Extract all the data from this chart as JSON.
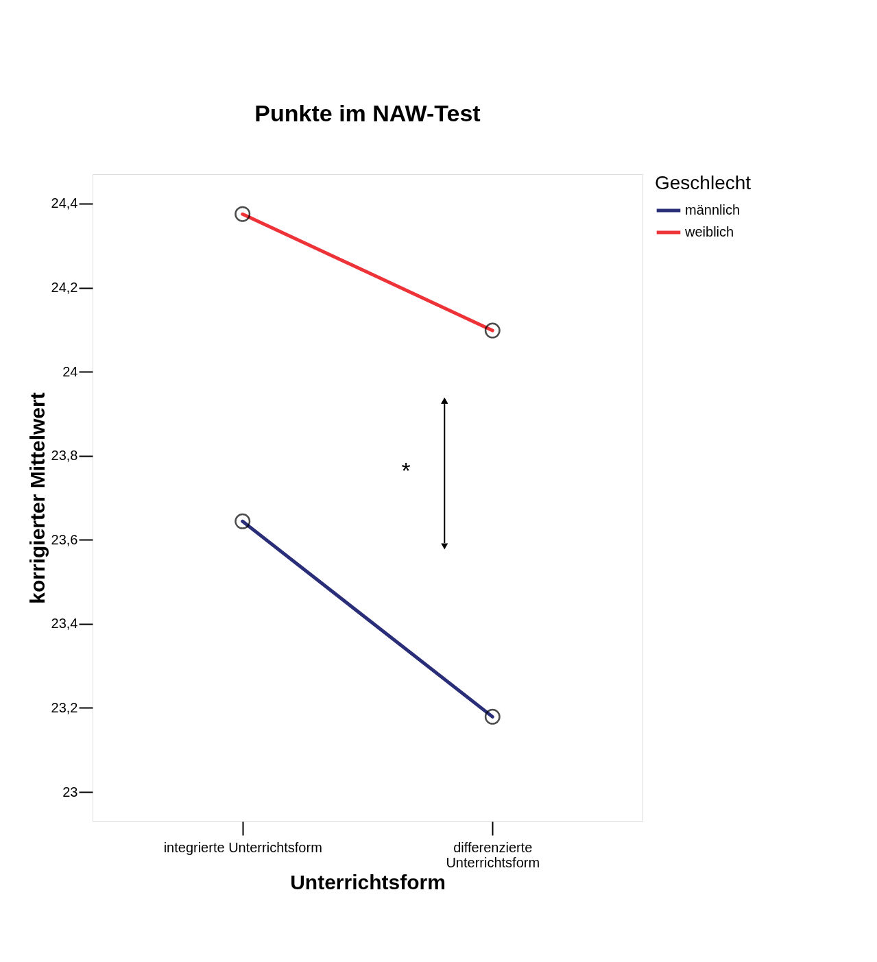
{
  "chart_data": {
    "type": "line",
    "title": "Punkte im NAW-Test",
    "xlabel": "Unterrichtsform",
    "ylabel": "korrigierter Mittelwert",
    "legend_title": "Geschlecht",
    "categories": [
      "integrierte Unterrichtsform",
      "differenzierte\nUnterrichtsform"
    ],
    "series": [
      {
        "name": "männlich",
        "color": "#2a2e78",
        "values": [
          23.644,
          23.179
        ]
      },
      {
        "name": "weiblich",
        "color": "#ee3338",
        "values": [
          24.375,
          24.098
        ]
      }
    ],
    "ylim": [
      22.93,
      24.47
    ],
    "yticks": [
      23,
      {
        "value": 23.2,
        "label": "23,2"
      },
      {
        "value": 23.4,
        "label": "23,4"
      },
      {
        "value": 23.6,
        "label": "23,6"
      },
      {
        "value": 23.8,
        "label": "23,8"
      },
      24,
      {
        "value": 24.2,
        "label": "24,2"
      },
      {
        "value": 24.4,
        "label": "24,4"
      }
    ],
    "annotations": [
      "*"
    ],
    "marker": "circle",
    "legend": "top right",
    "grid": false
  }
}
